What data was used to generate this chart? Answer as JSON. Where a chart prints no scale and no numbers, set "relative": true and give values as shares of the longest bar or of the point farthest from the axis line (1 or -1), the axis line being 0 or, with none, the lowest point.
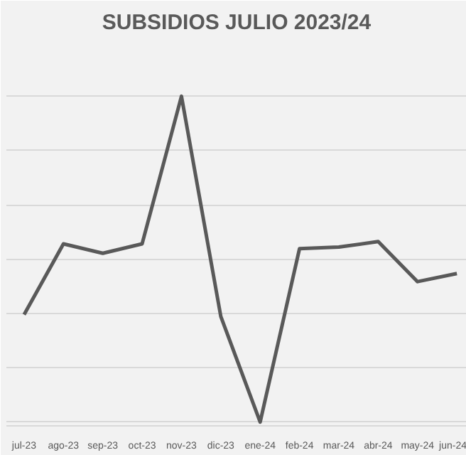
{
  "chart_data": {
    "type": "line",
    "title": "SUBSIDIOS JULIO 2023/24",
    "relative": true,
    "grid": "y",
    "line_style": "solid",
    "categories": [
      "jul-23",
      "ago-23",
      "sep-23",
      "oct-23",
      "nov-23",
      "dic-23",
      "ene-24",
      "feb-24",
      "mar-24",
      "abr-24",
      "may-24",
      "jun-24"
    ],
    "series": [
      {
        "color": "#595959",
        "values": [
          0.33,
          0.547,
          0.518,
          0.547,
          1,
          0.324,
          0,
          0.532,
          0.537,
          0.554,
          0.431,
          0.456
        ]
      }
    ]
  }
}
